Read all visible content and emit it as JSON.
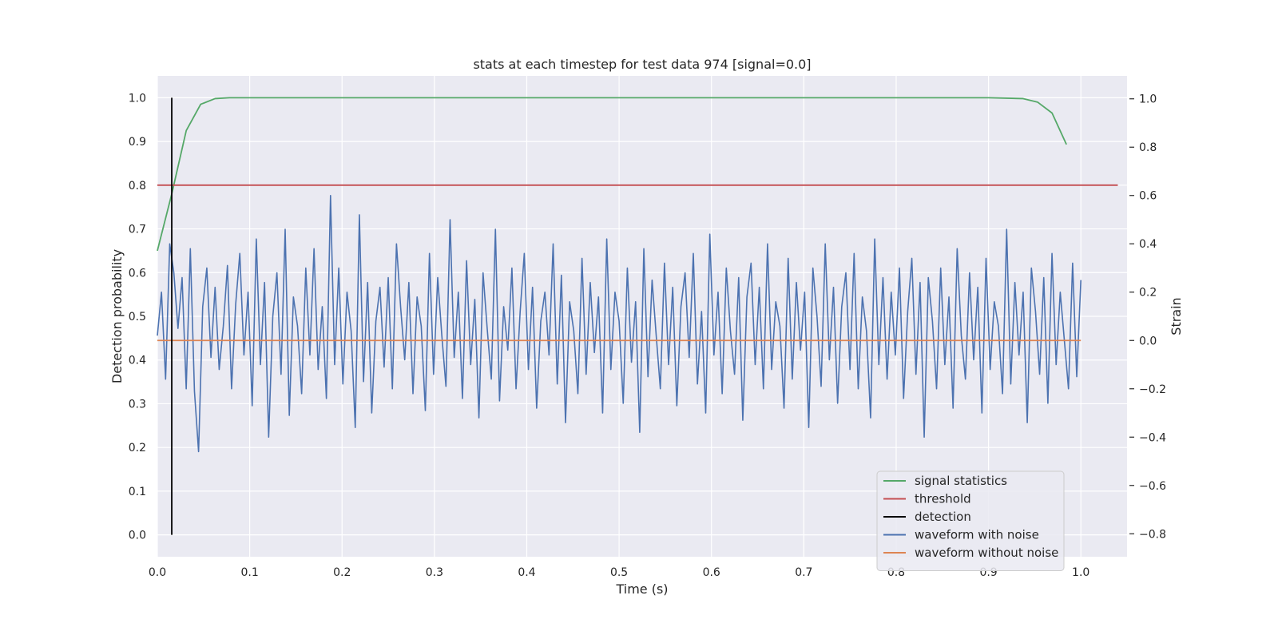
{
  "chart_data": {
    "type": "line",
    "title": "stats at each timestep for test data 974 [signal=0.0]",
    "xlabel": "Time (s)",
    "ylabel_left": "Detection probability",
    "ylabel_right": "Strain",
    "xlim": [
      0.0,
      1.05
    ],
    "ylim_left": [
      -0.05,
      1.05
    ],
    "ylim_right": [
      -0.895,
      1.095
    ],
    "x_ticks": [
      "0.0",
      "0.1",
      "0.2",
      "0.3",
      "0.4",
      "0.5",
      "0.6",
      "0.7",
      "0.8",
      "0.9",
      "1.0"
    ],
    "y_left_ticks": [
      "0.0",
      "0.1",
      "0.2",
      "0.3",
      "0.4",
      "0.5",
      "0.6",
      "0.7",
      "0.8",
      "0.9",
      "1.0"
    ],
    "y_right_ticks": [
      "−0.8",
      "−0.6",
      "−0.4",
      "−0.2",
      "0.0",
      "0.2",
      "0.4",
      "0.6",
      "0.8",
      "1.0"
    ],
    "grid": true,
    "legend_position": "lower-right",
    "series": [
      {
        "name": "signal statistics",
        "color": "#55a868",
        "axis": "left",
        "x": [
          0.0,
          0.0156,
          0.0313,
          0.0469,
          0.0625,
          0.0781,
          0.1,
          0.2,
          0.3,
          0.4,
          0.5,
          0.6,
          0.7,
          0.8,
          0.9,
          0.9375,
          0.9531,
          0.9688,
          0.9844
        ],
        "y": [
          0.65,
          0.78,
          0.925,
          0.985,
          0.998,
          1.0,
          1.0,
          1.0,
          1.0,
          1.0,
          1.0,
          1.0,
          1.0,
          1.0,
          1.0,
          0.998,
          0.99,
          0.965,
          0.893
        ]
      },
      {
        "name": "threshold",
        "color": "#c44e52",
        "axis": "left",
        "x": [
          0.0,
          1.04
        ],
        "y": [
          0.8,
          0.8
        ]
      },
      {
        "name": "detection",
        "color": "#000000",
        "axis": "left",
        "x": [
          0.0156,
          0.0156
        ],
        "y": [
          0.0,
          1.0
        ]
      },
      {
        "name": "waveform with noise",
        "color": "#4c72b0",
        "axis": "right",
        "x_start": 0.0,
        "x_end": 1.0,
        "y": [
          0.02,
          0.2,
          -0.16,
          0.4,
          0.28,
          0.05,
          0.26,
          -0.2,
          0.38,
          -0.21,
          -0.46,
          0.14,
          0.3,
          -0.07,
          0.22,
          -0.12,
          0.06,
          0.31,
          -0.2,
          0.15,
          0.36,
          -0.06,
          0.2,
          -0.27,
          0.42,
          -0.1,
          0.24,
          -0.4,
          0.1,
          0.28,
          -0.14,
          0.46,
          -0.31,
          0.18,
          0.06,
          -0.22,
          0.3,
          -0.06,
          0.38,
          -0.12,
          0.14,
          -0.24,
          0.6,
          -0.1,
          0.3,
          -0.18,
          0.2,
          0.04,
          -0.36,
          0.52,
          -0.17,
          0.24,
          -0.3,
          0.08,
          0.22,
          -0.11,
          0.26,
          -0.2,
          0.4,
          0.14,
          -0.08,
          0.24,
          -0.22,
          0.18,
          0.06,
          -0.29,
          0.36,
          -0.14,
          0.26,
          0.02,
          -0.19,
          0.5,
          -0.07,
          0.2,
          -0.24,
          0.33,
          -0.1,
          0.17,
          -0.32,
          0.28,
          0.05,
          -0.16,
          0.46,
          -0.25,
          0.14,
          -0.04,
          0.3,
          -0.2,
          0.12,
          0.36,
          -0.12,
          0.22,
          -0.28,
          0.08,
          0.2,
          -0.06,
          0.4,
          -0.18,
          0.27,
          -0.34,
          0.16,
          0.04,
          -0.22,
          0.34,
          -0.14,
          0.24,
          -0.05,
          0.18,
          -0.3,
          0.42,
          -0.12,
          0.2,
          0.08,
          -0.26,
          0.3,
          -0.09,
          0.16,
          -0.38,
          0.38,
          -0.15,
          0.25,
          0.02,
          -0.2,
          0.32,
          -0.1,
          0.22,
          -0.27,
          0.14,
          0.28,
          -0.07,
          0.36,
          -0.18,
          0.12,
          -0.3,
          0.44,
          -0.06,
          0.2,
          -0.22,
          0.3,
          0.04,
          -0.14,
          0.26,
          -0.33,
          0.18,
          0.32,
          -0.1,
          0.22,
          -0.2,
          0.4,
          -0.12,
          0.16,
          0.06,
          -0.28,
          0.34,
          -0.16,
          0.24,
          -0.04,
          0.2,
          -0.36,
          0.3,
          0.1,
          -0.19,
          0.4,
          -0.08,
          0.22,
          -0.26,
          0.14,
          0.28,
          -0.12,
          0.36,
          -0.2,
          0.18,
          0.04,
          -0.32,
          0.42,
          -0.1,
          0.26,
          -0.16,
          0.2,
          -0.06,
          0.3,
          -0.24,
          0.12,
          0.34,
          -0.14,
          0.24,
          -0.4,
          0.26,
          0.08,
          -0.2,
          0.3,
          -0.1,
          0.18,
          -0.28,
          0.38,
          0.02,
          -0.16,
          0.28,
          -0.08,
          0.22,
          -0.3,
          0.34,
          -0.12,
          0.16,
          0.06,
          -0.22,
          0.46,
          -0.18,
          0.24,
          -0.06,
          0.2,
          -0.34,
          0.3,
          0.12,
          -0.14,
          0.26,
          -0.26,
          0.36,
          -0.1,
          0.2,
          0.0,
          -0.2,
          0.32,
          -0.15,
          0.25
        ]
      },
      {
        "name": "waveform without noise",
        "color": "#dd8452",
        "axis": "right",
        "x": [
          0.0,
          1.0
        ],
        "y": [
          0.0,
          0.0
        ]
      }
    ]
  }
}
